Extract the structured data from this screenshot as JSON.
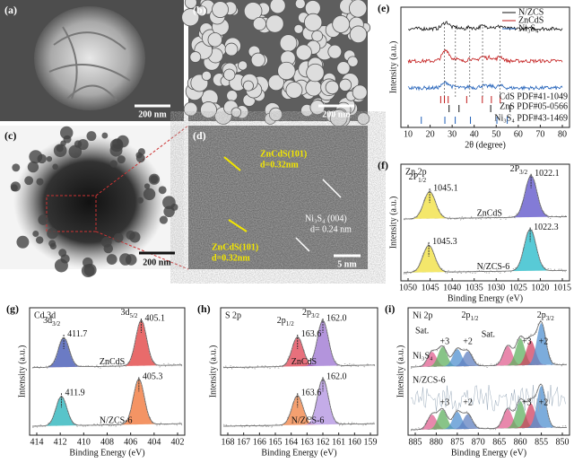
{
  "panels": {
    "a": {
      "label": "(a)",
      "scale": "200 nm"
    },
    "b": {
      "label": "(b)",
      "scale": "200 nm"
    },
    "c": {
      "label": "(c)",
      "scale": "200 nm"
    },
    "d": {
      "label": "(d)",
      "scale": "5 nm",
      "fringe1": "ZnCdS(101)",
      "fringe1_d": "d=0.32nm",
      "fringe2": "ZnCdS(101)",
      "fringe2_d": "d=0.32nm",
      "fringe3": "Ni₃S₄ (004)",
      "fringe3_d": "d= 0.24 nm"
    },
    "e": {
      "label": "(e)",
      "legend": [
        "N/ZCS",
        "ZnCdS",
        "Ni₃S₄"
      ],
      "refs": [
        "CdS PDF#41-1049",
        "ZnS PDF#05-0566",
        "Ni₃S₄ PDF#43-1469"
      ],
      "x_ticks": [
        "10",
        "20",
        "30",
        "40",
        "50",
        "60",
        "70",
        "80"
      ],
      "x_label": "2θ (degree)",
      "y_label": "Intensity (a.u.)"
    },
    "f": {
      "label": "(f)",
      "core": "Zn 2p",
      "orbital1": {
        "main": "2P",
        "sub": "1/2"
      },
      "orbital2": {
        "main": "2P",
        "sub": "3/2"
      },
      "top": {
        "name": "ZnCdS",
        "peaks": [
          "1045.1",
          "1022.1"
        ]
      },
      "bottom": {
        "name": "N/ZCS-6",
        "peaks": [
          "1045.3",
          "1022.3"
        ]
      },
      "x_ticks": [
        "1050",
        "1045",
        "1040",
        "1035",
        "1030",
        "1025",
        "1020",
        "1015"
      ],
      "x_label": "Binding Energy (eV)",
      "y_label": "Intensity (a.u.)"
    },
    "g": {
      "label": "(g)",
      "core": "Cd 3d",
      "orbital1": {
        "main": "3d",
        "sub": "3/2"
      },
      "orbital2": {
        "main": "3d",
        "sub": "5/2"
      },
      "top": {
        "name": "ZnCdS",
        "peaks": [
          "411.7",
          "405.1"
        ]
      },
      "bottom": {
        "name": "N/ZCS-6",
        "peaks": [
          "411.9",
          "405.3"
        ]
      },
      "x_ticks": [
        "414",
        "412",
        "410",
        "408",
        "406",
        "404",
        "402"
      ],
      "x_label": "Binding Energy (eV)",
      "y_label": "Intensity (a.u.)"
    },
    "h": {
      "label": "(h)",
      "core": "S 2p",
      "orbital1": {
        "main": "2p",
        "sub": "1/2"
      },
      "orbital2": {
        "main": "2p",
        "sub": "3/2"
      },
      "top": {
        "name": "ZnCdS",
        "peaks": [
          "163.6",
          "162.0"
        ]
      },
      "bottom": {
        "name": "N/ZCS-6",
        "peaks": [
          "163.6",
          "162.0"
        ]
      },
      "x_ticks": [
        "168",
        "167",
        "166",
        "165",
        "164",
        "163",
        "162",
        "161",
        "160",
        "159"
      ],
      "x_label": "Binding Energy (eV)",
      "y_label": "Intensity (a.u.)"
    },
    "i": {
      "label": "(i)",
      "core": "Ni 2p",
      "orbital1": {
        "main": "2p",
        "sub": "1/2"
      },
      "orbital2": {
        "main": "2p",
        "sub": "3/2"
      },
      "top": {
        "name": "Ni₃S₄"
      },
      "bottom": {
        "name": "N/ZCS-6"
      },
      "sat": "Sat.",
      "ox3": "+3",
      "ox2": "+2",
      "x_ticks": [
        "885",
        "880",
        "875",
        "870",
        "865",
        "860",
        "855",
        "850"
      ],
      "x_label": "Binding Energy (eV)",
      "y_label": "Intensity (a.u.)"
    }
  }
}
